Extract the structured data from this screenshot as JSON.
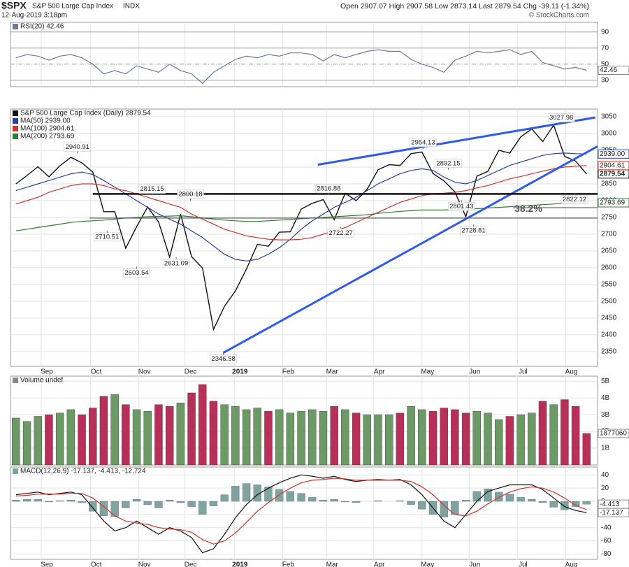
{
  "header": {
    "symbol": "$SPX",
    "name": "S&P 500 Large Cap Index",
    "exchange": "INDX",
    "date": "12-Aug-2019 3:18pm",
    "quote": "Open 2907.07  High 2907.58  Low 2873.14  Last 2879.54  Chg -39.11 (-1.34%)",
    "source": "© StockCharts.com"
  },
  "chart_data": [
    {
      "type": "line",
      "title": "RSI(20) 42.46",
      "xlim": [
        -0.5,
        53
      ],
      "ylim": [
        22,
        102
      ],
      "yticks": [
        90,
        70,
        50,
        30
      ],
      "grid": true,
      "series": [
        {
          "name": "RSI(20)",
          "color": "#6b7a99",
          "values": [
            58,
            62,
            60,
            55,
            60,
            62,
            58,
            50,
            38,
            42,
            38,
            48,
            44,
            40,
            50,
            42,
            38,
            26,
            40,
            48,
            56,
            60,
            58,
            62,
            60,
            64,
            64,
            62,
            54,
            62,
            58,
            62,
            66,
            68,
            66,
            66,
            56,
            50,
            46,
            40,
            55,
            60,
            66,
            64,
            66,
            68,
            62,
            66,
            52,
            48,
            44,
            46,
            42.46
          ]
        }
      ]
    },
    {
      "type": "line",
      "title": "S&P 500 Large Cap Index (Daily) 2879.54",
      "xlim": [
        -0.5,
        53
      ],
      "ylim": [
        2306,
        3073
      ],
      "yticks": [
        3050,
        3000,
        2950,
        2900,
        2850,
        2800,
        2750,
        2700,
        2650,
        2600,
        2550,
        2500,
        2450,
        2400,
        2350
      ],
      "grid": true,
      "xticks": [
        {
          "value": 2.3,
          "label": "Sep"
        },
        {
          "value": 6.8,
          "label": "Oct"
        },
        {
          "value": 11.2,
          "label": "Nov"
        },
        {
          "value": 15.4,
          "label": "Dec"
        },
        {
          "value": 19.9,
          "label": "2019"
        },
        {
          "value": 24.3,
          "label": "Feb"
        },
        {
          "value": 28.3,
          "label": "Mar"
        },
        {
          "value": 32.6,
          "label": "Apr"
        },
        {
          "value": 37,
          "label": "May"
        },
        {
          "value": 41.3,
          "label": "Jun"
        },
        {
          "value": 45.7,
          "label": "Jul"
        },
        {
          "value": 50.1,
          "label": "Aug"
        }
      ],
      "series": [
        {
          "name": "S&P 500 Large Cap Index (Daily)",
          "color": "#111111",
          "values": [
            2850,
            2875,
            2901,
            2871,
            2904,
            2929,
            2913,
            2885,
            2767,
            2767,
            2658,
            2723,
            2781,
            2736,
            2632,
            2760,
            2633,
            2599,
            2416,
            2485,
            2531,
            2596,
            2670,
            2664,
            2706,
            2707,
            2775,
            2792,
            2803,
            2743,
            2822,
            2800,
            2834,
            2892,
            2907,
            2905,
            2940,
            2945,
            2881,
            2859,
            2826,
            2752,
            2873,
            2887,
            2950,
            2942,
            2990,
            3014,
            2976,
            3025,
            2932,
            2918,
            2879.54
          ]
        },
        {
          "name": "MA(50) 2939.00",
          "color": "#2b3f9e",
          "last_label": "2939.00",
          "values": [
            2830,
            2840,
            2850,
            2860,
            2870,
            2880,
            2885,
            2878,
            2860,
            2840,
            2820,
            2800,
            2780,
            2760,
            2745,
            2730,
            2710,
            2690,
            2665,
            2640,
            2625,
            2620,
            2625,
            2640,
            2660,
            2685,
            2715,
            2740,
            2760,
            2780,
            2795,
            2810,
            2830,
            2850,
            2865,
            2880,
            2890,
            2895,
            2890,
            2870,
            2855,
            2850,
            2860,
            2875,
            2890,
            2905,
            2915,
            2925,
            2935,
            2940,
            2942,
            2940,
            2939.0
          ]
        },
        {
          "name": "MA(100) 2904.61",
          "color": "#d0342c",
          "last_label": "2904.61",
          "values": [
            2790,
            2800,
            2810,
            2825,
            2835,
            2845,
            2850,
            2850,
            2845,
            2835,
            2830,
            2820,
            2810,
            2800,
            2790,
            2780,
            2760,
            2745,
            2730,
            2715,
            2705,
            2695,
            2690,
            2685,
            2683,
            2683,
            2685,
            2690,
            2700,
            2710,
            2720,
            2735,
            2750,
            2765,
            2780,
            2795,
            2805,
            2815,
            2820,
            2822,
            2825,
            2830,
            2838,
            2845,
            2855,
            2865,
            2872,
            2880,
            2888,
            2895,
            2900,
            2903,
            2904.61
          ]
        },
        {
          "name": "MA(200) 2793.69",
          "color": "#2e7d32",
          "last_label": "2793.69",
          "values": [
            2710,
            2715,
            2720,
            2725,
            2730,
            2735,
            2738,
            2740,
            2742,
            2745,
            2748,
            2750,
            2752,
            2753,
            2754,
            2755,
            2752,
            2748,
            2745,
            2742,
            2740,
            2738,
            2738,
            2740,
            2742,
            2744,
            2746,
            2748,
            2750,
            2752,
            2754,
            2756,
            2758,
            2762,
            2765,
            2768,
            2770,
            2772,
            2772,
            2772,
            2773,
            2774,
            2776,
            2778,
            2780,
            2782,
            2784,
            2786,
            2788,
            2790,
            2792,
            2793,
            2793.69
          ]
        }
      ],
      "annotations": [
        {
          "value": 2940.91,
          "x": 5.6,
          "side": "above"
        },
        {
          "value": 2815.15,
          "x": 12.4,
          "side": "above"
        },
        {
          "value": 2800.18,
          "x": 15.9,
          "side": "above"
        },
        {
          "value": 2710.51,
          "x": 8.3,
          "side": "below"
        },
        {
          "value": 2603.54,
          "x": 11,
          "side": "below"
        },
        {
          "value": 2631.09,
          "x": 14.6,
          "side": "below"
        },
        {
          "value": 2346.58,
          "x": 18.9,
          "side": "below"
        },
        {
          "value": 2816.88,
          "x": 28.5,
          "side": "above"
        },
        {
          "value": 2722.27,
          "x": 29.6,
          "side": "below"
        },
        {
          "value": 2954.13,
          "x": 37.1,
          "side": "above"
        },
        {
          "value": 2892.15,
          "x": 39.4,
          "side": "above"
        },
        {
          "value": 2801.43,
          "x": 40.6,
          "side": "below"
        },
        {
          "value": 2728.81,
          "x": 41.7,
          "side": "below"
        },
        {
          "value": 3027.98,
          "x": 49.7,
          "side": "above"
        },
        {
          "value": 2822.12,
          "x": 50.9,
          "side": "below"
        }
      ],
      "lines": [
        {
          "x": [
            18.9,
            53
          ],
          "y": [
            2346.58,
            2962
          ],
          "color": "#2f5be8",
          "width": 3
        },
        {
          "x": [
            27.5,
            52.8
          ],
          "y": [
            2907,
            3048
          ],
          "color": "#2f5be8",
          "width": 3
        },
        {
          "x": [
            7,
            53
          ],
          "y": [
            2820,
            2820
          ],
          "color": "#111111",
          "width": 2.5
        },
        {
          "x": [
            6.7,
            53
          ],
          "y": [
            2748,
            2748
          ],
          "color": "#555555",
          "width": 1.2
        },
        {
          "x": [
            45.3,
            53
          ],
          "y": [
            2779,
            2779
          ],
          "color": "#555555",
          "width": 1.2,
          "label": "38.2%"
        }
      ]
    },
    {
      "type": "bar",
      "title": "Volume undef",
      "xlim": [
        -0.5,
        53
      ],
      "ylim": [
        0,
        5300000
      ],
      "up_color": "#6b9a64",
      "down_color": "#b8305a",
      "yticks": [
        {
          "value": 5000000,
          "label": "5B"
        },
        {
          "value": 4000000,
          "label": "4B"
        },
        {
          "value": 3000000,
          "label": "3B"
        },
        {
          "value": 2000000,
          "label": "2B"
        },
        {
          "value": 1000000,
          "label": "1B"
        }
      ],
      "grid": true,
      "series": [
        {
          "name": "Volume",
          "values": [
            2800000,
            2600000,
            2900000,
            3000000,
            3100000,
            3300000,
            3000000,
            3400000,
            4100000,
            4200000,
            3600000,
            3300000,
            3200000,
            3600000,
            3500000,
            3700000,
            4300000,
            4800000,
            3800000,
            3600000,
            3500000,
            3300000,
            3400000,
            3200000,
            3300000,
            3100000,
            3200000,
            3300000,
            3200000,
            3500000,
            3300000,
            3100000,
            3000000,
            3000000,
            3000000,
            3100000,
            3500000,
            3300000,
            3200000,
            3400000,
            3300000,
            3100000,
            3200000,
            3100000,
            2700000,
            2900000,
            3000000,
            3100000,
            3800000,
            3600000,
            3900000,
            3500000,
            1877060
          ]
        }
      ]
    },
    {
      "type": "line",
      "title": "MACD(12,26,9) -17.137, -4.413, -12.724",
      "xlim": [
        -0.5,
        53
      ],
      "ylim": [
        -88,
        52
      ],
      "yticks": [
        40,
        20,
        0,
        -20,
        -40,
        -60,
        -80
      ],
      "grid": true,
      "xticks": [
        {
          "value": 2.3,
          "label": "Sep"
        },
        {
          "value": 6.8,
          "label": "Oct"
        },
        {
          "value": 11.2,
          "label": "Nov"
        },
        {
          "value": 15.4,
          "label": "Dec"
        },
        {
          "value": 19.9,
          "label": "2019"
        },
        {
          "value": 24.3,
          "label": "Feb"
        },
        {
          "value": 28.3,
          "label": "Mar"
        },
        {
          "value": 32.6,
          "label": "Apr"
        },
        {
          "value": 37,
          "label": "May"
        },
        {
          "value": 41.3,
          "label": "Jun"
        },
        {
          "value": 45.7,
          "label": "Jul"
        },
        {
          "value": 50.1,
          "label": "Aug"
        }
      ],
      "series": [
        {
          "name": "Histogram",
          "style": "histogram",
          "color": "#7fa39e",
          "values": [
            2,
            3,
            3,
            -1,
            1,
            2,
            -2,
            -15,
            -22,
            -23,
            -10,
            3,
            -5,
            -10,
            2,
            -2,
            -8,
            -20,
            -7,
            10,
            23,
            27,
            25,
            22,
            18,
            15,
            12,
            6,
            2,
            3,
            -1,
            -2,
            0,
            1,
            0,
            1,
            -5,
            -12,
            -20,
            -24,
            -20,
            2,
            15,
            19,
            14,
            11,
            6,
            3,
            -2,
            -9,
            -13,
            -8,
            -4.413
          ]
        },
        {
          "name": "MACD",
          "color": "#111111",
          "values": [
            10,
            12,
            14,
            10,
            12,
            14,
            10,
            -10,
            -30,
            -45,
            -40,
            -30,
            -40,
            -50,
            -40,
            -45,
            -55,
            -78,
            -72,
            -50,
            -25,
            -5,
            10,
            20,
            28,
            35,
            40,
            38,
            35,
            38,
            33,
            30,
            32,
            33,
            32,
            33,
            25,
            10,
            -10,
            -30,
            -40,
            -20,
            0,
            15,
            20,
            25,
            25,
            25,
            18,
            5,
            -8,
            -14,
            -17.137
          ]
        },
        {
          "name": "Signal",
          "color": "#d0342c",
          "values": [
            8,
            9,
            11,
            11,
            11,
            12,
            12,
            5,
            -8,
            -22,
            -30,
            -33,
            -35,
            -40,
            -42,
            -43,
            -47,
            -58,
            -65,
            -60,
            -48,
            -32,
            -15,
            -2,
            10,
            20,
            28,
            32,
            33,
            35,
            34,
            32,
            32,
            32,
            32,
            32,
            30,
            22,
            10,
            -6,
            -20,
            -22,
            -15,
            -4,
            6,
            14,
            19,
            22,
            20,
            14,
            5,
            -6,
            -12.724
          ]
        }
      ]
    }
  ]
}
